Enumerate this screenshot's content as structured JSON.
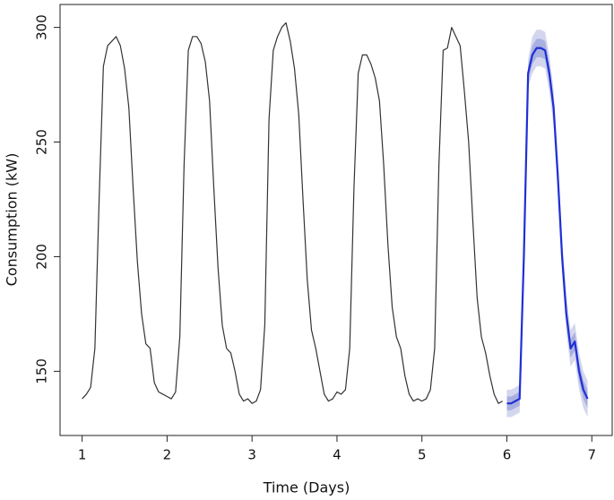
{
  "chart_data": {
    "type": "line",
    "x_label": "Time (Days)",
    "y_label": "Consumption (kW)",
    "xlim": [
      0.74,
      7.24
    ],
    "xticks": [
      1,
      2,
      3,
      4,
      5,
      6,
      7
    ],
    "ylim": [
      122,
      310
    ],
    "yticks": [
      150,
      200,
      250,
      300
    ],
    "series": [
      {
        "color": "#333333",
        "width": 1.2,
        "x": [
          1,
          1.05,
          1.1,
          1.15,
          1.2,
          1.25,
          1.3,
          1.35,
          1.4,
          1.45,
          1.5,
          1.55,
          1.6,
          1.65,
          1.7,
          1.75,
          1.8,
          1.85,
          1.9,
          1.95,
          2,
          2.05,
          2.1,
          2.15,
          2.2,
          2.25,
          2.3,
          2.35,
          2.4,
          2.45,
          2.5,
          2.55,
          2.6,
          2.65,
          2.7,
          2.75,
          2.8,
          2.85,
          2.9,
          2.95,
          3,
          3.05,
          3.1,
          3.15,
          3.2,
          3.25,
          3.3,
          3.35,
          3.4,
          3.45,
          3.5,
          3.55,
          3.6,
          3.65,
          3.7,
          3.75,
          3.8,
          3.85,
          3.9,
          3.95,
          4,
          4.05,
          4.1,
          4.15,
          4.2,
          4.25,
          4.3,
          4.35,
          4.4,
          4.45,
          4.5,
          4.55,
          4.6,
          4.65,
          4.7,
          4.75,
          4.8,
          4.85,
          4.9,
          4.95,
          5,
          5.05,
          5.1,
          5.15,
          5.2,
          5.25,
          5.3,
          5.35,
          5.4,
          5.45,
          5.5,
          5.55,
          5.6,
          5.65,
          5.7,
          5.75,
          5.8,
          5.85,
          5.9,
          5.95
        ],
        "values": [
          138,
          140,
          143,
          160,
          225,
          283,
          292,
          294,
          296,
          292,
          282,
          265,
          230,
          198,
          175,
          162,
          160,
          145,
          141,
          140,
          139,
          138,
          141,
          165,
          240,
          290,
          296,
          296,
          293,
          285,
          268,
          230,
          195,
          170,
          160,
          158,
          150,
          140,
          137,
          138,
          136,
          137,
          142,
          170,
          260,
          290,
          296,
          300,
          302,
          294,
          282,
          262,
          225,
          190,
          168,
          160,
          150,
          140,
          137,
          138,
          141,
          140,
          142,
          160,
          230,
          280,
          288,
          288,
          284,
          278,
          268,
          240,
          205,
          178,
          165,
          160,
          148,
          140,
          137,
          138,
          137,
          138,
          142,
          160,
          240,
          290,
          291,
          300,
          296,
          292,
          272,
          250,
          215,
          182,
          165,
          158,
          148,
          140,
          136,
          137
        ]
      },
      {
        "color": "#1f2fd6",
        "width": 2.2,
        "x": [
          6,
          6.05,
          6.1,
          6.15,
          6.2,
          6.25,
          6.3,
          6.35,
          6.4,
          6.45,
          6.5,
          6.55,
          6.6,
          6.65,
          6.7,
          6.75,
          6.8,
          6.85,
          6.9,
          6.95
        ],
        "values": [
          136,
          136,
          137,
          138,
          200,
          280,
          288,
          291,
          291,
          290,
          280,
          265,
          235,
          200,
          175,
          160,
          163,
          150,
          142,
          138
        ],
        "bands": [
          {
            "color": "#d3d6ee",
            "lower": [
              130,
              130,
              131,
              132,
              194,
              274,
              280,
              283,
              283,
              282,
              272,
              257,
              227,
              192,
              167,
              152,
              155,
              142,
              134,
              130
            ],
            "upper": [
              142,
              142,
              143,
              144,
              206,
              286,
              296,
              299,
              299,
              298,
              288,
              273,
              243,
              208,
              183,
              168,
              171,
              158,
              150,
              146
            ]
          },
          {
            "color": "#a9afe0",
            "lower": [
              133,
              133,
              134,
              135,
              197,
              277,
              284,
              287,
              287,
              286,
              276,
              261,
              231,
              196,
              171,
              156,
              159,
              146,
              138,
              134
            ],
            "upper": [
              139,
              139,
              140,
              141,
              203,
              283,
              292,
              295,
              295,
              294,
              284,
              269,
              239,
              204,
              179,
              164,
              167,
              154,
              146,
              142
            ]
          }
        ]
      }
    ]
  }
}
